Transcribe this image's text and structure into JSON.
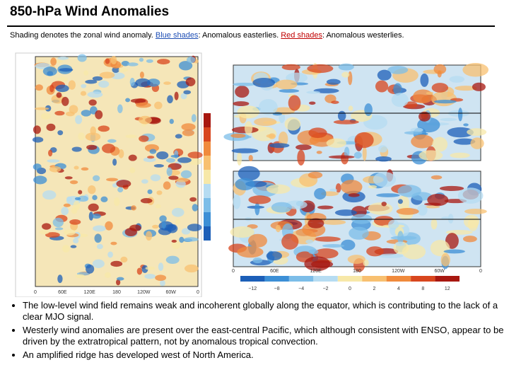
{
  "header": {
    "title": "850-hPa Wind Anomalies",
    "subtitle": [
      "Shading denotes the zonal wind anomaly. ",
      "Blue shades",
      ": Anomalous easterlies. ",
      "Red shades",
      ": Anomalous westerlies."
    ]
  },
  "hovmoller": {
    "x_labels": [
      "0",
      "60E",
      "120E",
      "180",
      "120W",
      "60W",
      "0"
    ]
  },
  "maps": {
    "x_labels": [
      "0",
      "60E",
      "120E",
      "180",
      "120W",
      "60W",
      "0"
    ]
  },
  "colorbar": {
    "labels": [
      "−12",
      "−8",
      "−4",
      "−2",
      "0",
      "2",
      "4",
      "8",
      "12"
    ]
  },
  "bullets": [
    "The low-level wind field remains weak and incoherent globally along the equator, which is contributing to the lack of a clear MJO signal.",
    "Westerly wind anomalies are present over the east-central Pacific, which although consistent with ENSO, appear to be driven by the extratropical pattern, not by anomalous tropical convection.",
    "An amplified ridge has developed west of North America."
  ]
}
